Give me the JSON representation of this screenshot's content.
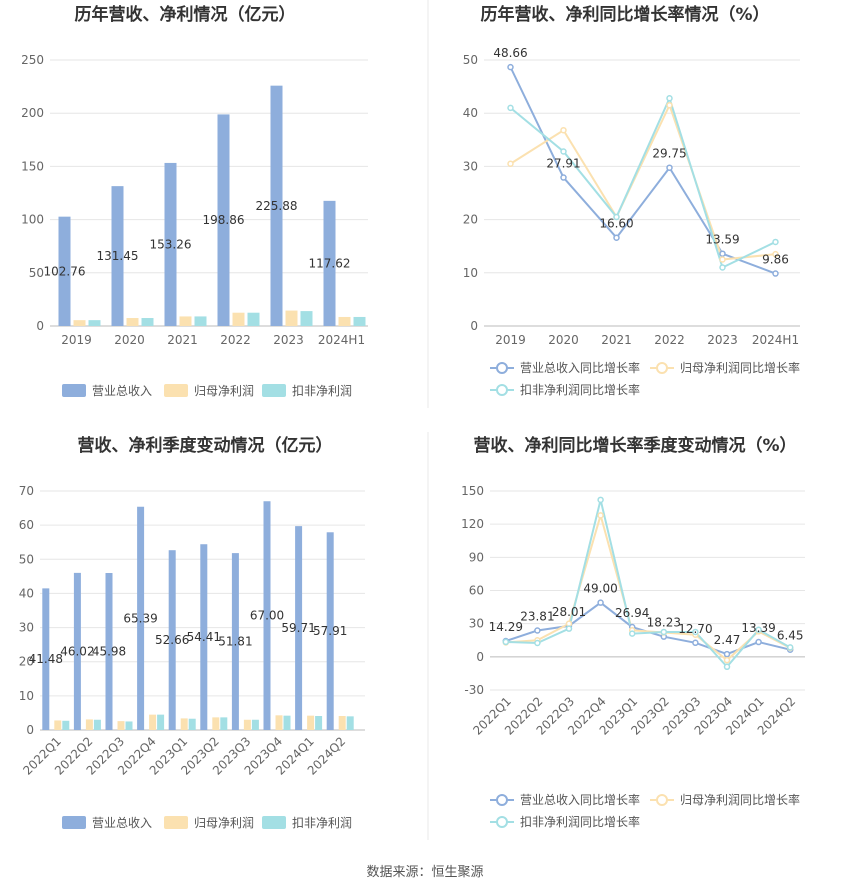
{
  "colors": {
    "revenue": "#8eaedc",
    "net_profit": "#fbe1b0",
    "deducted_profit": "#a3dfe4"
  },
  "source": "数据来源：恒生聚源",
  "chart_data": [
    {
      "type": "bar",
      "title": "历年营收、净利情况（亿元）",
      "categories": [
        "2019",
        "2020",
        "2021",
        "2022",
        "2023",
        "2024H1"
      ],
      "ylim": [
        0,
        250
      ],
      "yticks": [
        0,
        50,
        100,
        150,
        200,
        250
      ],
      "series": [
        {
          "name": "营业总收入",
          "values": [
            102.76,
            131.45,
            153.26,
            198.86,
            225.88,
            117.62
          ],
          "labels": [
            "102.76",
            "131.45",
            "153.26",
            "198.86",
            "225.88",
            "117.62"
          ]
        },
        {
          "name": "归母净利润",
          "values": [
            5.5,
            7.5,
            9.0,
            12.5,
            14.5,
            8.5
          ]
        },
        {
          "name": "扣非净利润",
          "values": [
            5.5,
            7.5,
            9.0,
            12.5,
            14.0,
            8.5
          ]
        }
      ],
      "legend": "bottom",
      "grid": true
    },
    {
      "type": "line",
      "title": "历年营收、净利同比增长率情况（%）",
      "categories": [
        "2019",
        "2020",
        "2021",
        "2022",
        "2023",
        "2024H1"
      ],
      "ylim": [
        0,
        50
      ],
      "yticks": [
        0,
        10,
        20,
        30,
        40,
        50
      ],
      "series": [
        {
          "name": "营业总收入同比增长率",
          "values": [
            48.66,
            27.91,
            16.6,
            29.75,
            13.59,
            9.86
          ],
          "labels": [
            "48.66",
            "27.91",
            "16.60",
            "29.75",
            "13.59",
            "9.86"
          ]
        },
        {
          "name": "归母净利润同比增长率",
          "values": [
            30.5,
            36.8,
            20.5,
            41.5,
            12.5,
            13.5
          ]
        },
        {
          "name": "扣非净利润同比增长率",
          "values": [
            41.0,
            32.8,
            20.5,
            42.8,
            11.0,
            15.8
          ]
        }
      ],
      "legend": "bottom",
      "grid": true
    },
    {
      "type": "bar",
      "title": "营收、净利季度变动情况（亿元）",
      "categories": [
        "2022Q1",
        "2022Q2",
        "2022Q3",
        "2022Q4",
        "2023Q1",
        "2023Q2",
        "2023Q3",
        "2023Q4",
        "2024Q1",
        "2024Q2"
      ],
      "ylim": [
        0,
        70
      ],
      "yticks": [
        0,
        10,
        20,
        30,
        40,
        50,
        60,
        70
      ],
      "series": [
        {
          "name": "营业总收入",
          "values": [
            41.48,
            46.02,
            45.98,
            65.39,
            52.66,
            54.41,
            51.81,
            67.0,
            59.71,
            57.91
          ],
          "labels": [
            "41.48",
            "46.02",
            "45.98",
            "65.39",
            "52.66",
            "54.41",
            "51.81",
            "67.00",
            "59.71",
            "57.91"
          ]
        },
        {
          "name": "归母净利润",
          "values": [
            2.8,
            3.1,
            2.6,
            4.5,
            3.4,
            3.7,
            3.0,
            4.3,
            4.2,
            4.1
          ]
        },
        {
          "name": "扣非净利润",
          "values": [
            2.7,
            3.0,
            2.5,
            4.5,
            3.3,
            3.7,
            3.0,
            4.2,
            4.1,
            4.0
          ]
        }
      ],
      "legend": "bottom",
      "grid": true
    },
    {
      "type": "line",
      "title": "营收、净利同比增长率季度变动情况（%）",
      "categories": [
        "2022Q1",
        "2022Q2",
        "2022Q3",
        "2022Q4",
        "2023Q1",
        "2023Q2",
        "2023Q3",
        "2023Q4",
        "2024Q1",
        "2024Q2"
      ],
      "ylim": [
        -30,
        150
      ],
      "yticks": [
        -30,
        0,
        30,
        60,
        90,
        120,
        150
      ],
      "series": [
        {
          "name": "营业总收入同比增长率",
          "values": [
            14.29,
            23.81,
            28.01,
            49.0,
            26.94,
            18.23,
            12.7,
            2.47,
            13.39,
            6.45
          ],
          "labels": [
            "14.29",
            "23.81",
            "28.01",
            "49.00",
            "26.94",
            "18.23",
            "12.70",
            "2.47",
            "13.39",
            "6.45"
          ]
        },
        {
          "name": "归母净利润同比增长率",
          "values": [
            13.0,
            15.0,
            30.0,
            128.0,
            24.0,
            22.0,
            20.0,
            -3.0,
            23.0,
            8.0
          ]
        },
        {
          "name": "扣非净利润同比增长率",
          "values": [
            13.5,
            12.5,
            25.5,
            142.0,
            21.0,
            22.5,
            22.5,
            -9.0,
            24.5,
            8.5
          ]
        }
      ],
      "legend": "bottom",
      "grid": true
    }
  ]
}
